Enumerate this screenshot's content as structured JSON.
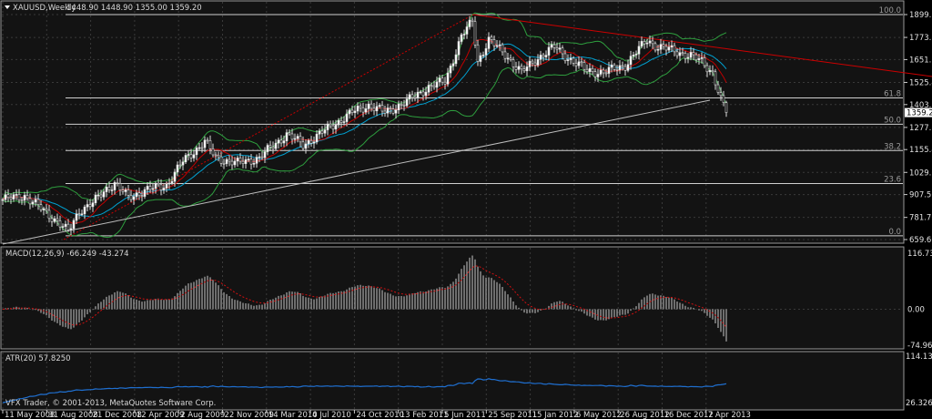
{
  "header": {
    "symbol": "XAUUSD,Weekly",
    "ohlc": "1448.90 1448.90 1355.00 1359.20"
  },
  "macd": {
    "label": "MACD(12,26,9) -66.249 -43.274",
    "ticks": [
      "116.73",
      "0.00",
      "-74.962"
    ]
  },
  "atr": {
    "label": "ATR(20) 57.8250",
    "ticks": [
      "114.1311",
      "26.3269"
    ]
  },
  "copyright": "VFX Trader, © 2001-2013, MetaQuotes Software Corp.",
  "colors": {
    "bg": "#000000",
    "panel": "#131313",
    "grid": "#3a3a3a",
    "ma_fast": "#c00000",
    "ma_slow": "#00a0d0",
    "bands": "#2e9e3e",
    "trend": "#cc0000",
    "atr": "#1f6fd0"
  },
  "chart_data": {
    "type": "candlestick",
    "timeframe": "Weekly",
    "price_ticks": [
      "1899.10",
      "1773.30",
      "1651.20",
      "1525.40",
      "1403.30",
      "1277.50",
      "1155.40",
      "1029.60",
      "907.50",
      "781.70",
      "659.60"
    ],
    "current_price": "1359.20",
    "ylim": [
      659.6,
      1899.1
    ],
    "x_ticks": [
      "11 May 2008",
      "31 Aug 2008",
      "21 Dec 2008",
      "12 Apr 2009",
      "2 Aug 2009",
      "22 Nov 2009",
      "14 Mar 2010",
      "4 Jul 2010",
      "24 Oct 2010",
      "13 Feb 2011",
      "5 Jun 2011",
      "25 Sep 2011",
      "15 Jan 2012",
      "6 May 2012",
      "26 Aug 2012",
      "16 Dec 2012",
      "7 Apr 2013"
    ],
    "fib_levels": [
      {
        "label": "100.0",
        "price": 1920
      },
      {
        "label": "61.8",
        "price": 1440
      },
      {
        "label": "50.0",
        "price": 1295
      },
      {
        "label": "38.2",
        "price": 1150
      },
      {
        "label": "23.6",
        "price": 968
      },
      {
        "label": "0.0",
        "price": 680
      }
    ],
    "close_anchors_week_price": [
      [
        0,
        880
      ],
      [
        8,
        900
      ],
      [
        14,
        830
      ],
      [
        20,
        760
      ],
      [
        24,
        700
      ],
      [
        28,
        820
      ],
      [
        33,
        860
      ],
      [
        38,
        940
      ],
      [
        41,
        970
      ],
      [
        46,
        890
      ],
      [
        52,
        930
      ],
      [
        60,
        960
      ],
      [
        66,
        1090
      ],
      [
        74,
        1200
      ],
      [
        78,
        1110
      ],
      [
        86,
        1080
      ],
      [
        94,
        1110
      ],
      [
        104,
        1240
      ],
      [
        110,
        1180
      ],
      [
        120,
        1280
      ],
      [
        128,
        1360
      ],
      [
        134,
        1400
      ],
      [
        140,
        1360
      ],
      [
        148,
        1420
      ],
      [
        156,
        1500
      ],
      [
        162,
        1530
      ],
      [
        168,
        1780
      ],
      [
        172,
        1860
      ],
      [
        174,
        1640
      ],
      [
        178,
        1760
      ],
      [
        184,
        1680
      ],
      [
        190,
        1580
      ],
      [
        196,
        1660
      ],
      [
        202,
        1720
      ],
      [
        208,
        1650
      ],
      [
        214,
        1590
      ],
      [
        220,
        1580
      ],
      [
        228,
        1620
      ],
      [
        236,
        1760
      ],
      [
        240,
        1720
      ],
      [
        246,
        1700
      ],
      [
        252,
        1670
      ],
      [
        256,
        1640
      ],
      [
        260,
        1580
      ],
      [
        263,
        1430
      ],
      [
        265,
        1359
      ]
    ],
    "macd_range": [
      -74.962,
      116.73
    ],
    "atr_range": [
      26.3269,
      114.1311
    ]
  }
}
